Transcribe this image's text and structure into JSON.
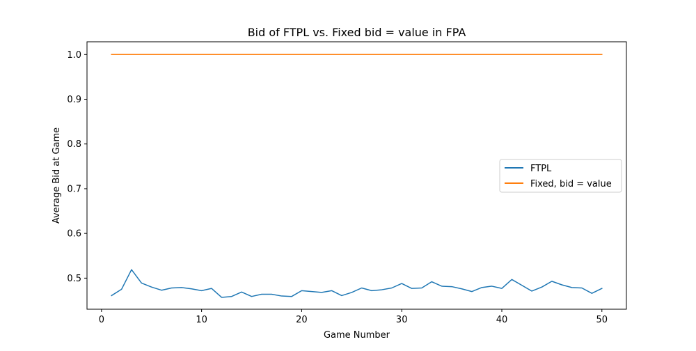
{
  "chart_data": {
    "type": "line",
    "title": "Bid of FTPL vs. Fixed bid = value in FPA",
    "xlabel": "Game Number",
    "ylabel": "Average Bid at Game",
    "xlim": [
      -1.45,
      52.45
    ],
    "ylim": [
      0.4305,
      1.0285
    ],
    "xticks": [
      0,
      10,
      20,
      30,
      40,
      50
    ],
    "xtick_labels": [
      "0",
      "10",
      "20",
      "30",
      "40",
      "50"
    ],
    "yticks": [
      0.5,
      0.6,
      0.7,
      0.8,
      0.9,
      1.0
    ],
    "ytick_labels": [
      "0.5",
      "0.6",
      "0.7",
      "0.8",
      "0.9",
      "1.0"
    ],
    "grid": false,
    "legend_position": "center-right",
    "x": [
      1,
      2,
      3,
      4,
      5,
      6,
      7,
      8,
      9,
      10,
      11,
      12,
      13,
      14,
      15,
      16,
      17,
      18,
      19,
      20,
      21,
      22,
      23,
      24,
      25,
      26,
      27,
      28,
      29,
      30,
      31,
      32,
      33,
      34,
      35,
      36,
      37,
      38,
      39,
      40,
      41,
      42,
      43,
      44,
      45,
      46,
      47,
      48,
      49,
      50
    ],
    "series": [
      {
        "name": "FTPL",
        "color": "#1f77b4",
        "values": [
          0.461,
          0.475,
          0.519,
          0.489,
          0.48,
          0.473,
          0.478,
          0.479,
          0.476,
          0.472,
          0.477,
          0.457,
          0.459,
          0.469,
          0.459,
          0.464,
          0.464,
          0.46,
          0.459,
          0.472,
          0.47,
          0.468,
          0.472,
          0.461,
          0.468,
          0.478,
          0.472,
          0.474,
          0.478,
          0.488,
          0.477,
          0.478,
          0.492,
          0.482,
          0.481,
          0.476,
          0.47,
          0.479,
          0.482,
          0.477,
          0.497,
          0.484,
          0.471,
          0.48,
          0.493,
          0.485,
          0.479,
          0.478,
          0.466,
          0.477
        ]
      },
      {
        "name": "Fixed, bid = value",
        "color": "#ff7f0e",
        "values": [
          1.0,
          1.0,
          1.0,
          1.0,
          1.0,
          1.0,
          1.0,
          1.0,
          1.0,
          1.0,
          1.0,
          1.0,
          1.0,
          1.0,
          1.0,
          1.0,
          1.0,
          1.0,
          1.0,
          1.0,
          1.0,
          1.0,
          1.0,
          1.0,
          1.0,
          1.0,
          1.0,
          1.0,
          1.0,
          1.0,
          1.0,
          1.0,
          1.0,
          1.0,
          1.0,
          1.0,
          1.0,
          1.0,
          1.0,
          1.0,
          1.0,
          1.0,
          1.0,
          1.0,
          1.0,
          1.0,
          1.0,
          1.0,
          1.0,
          1.0
        ]
      }
    ]
  }
}
